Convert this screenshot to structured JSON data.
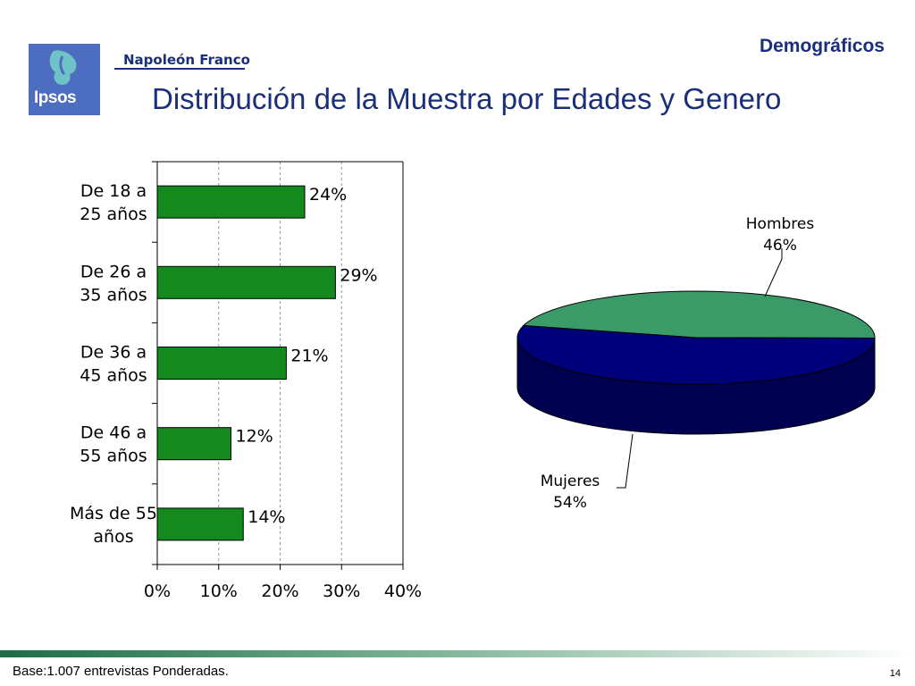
{
  "header": {
    "section": "Demográficos",
    "title": "Distribución de la Muestra por Edades y Genero",
    "brand": "Napoleón Franco",
    "logo_text": "Ipsos"
  },
  "footer": {
    "note": "Base:1.007 entrevistas Ponderadas.",
    "page_number": "14"
  },
  "colors": {
    "bar": "#148a1e",
    "title_blue": "#1a2f7a",
    "pie_men": "#3a9a68",
    "pie_women": "#00007a",
    "pie_women_side": "#000050",
    "pie_men_side": "#1e5c3c"
  },
  "chart_data": [
    {
      "type": "bar",
      "orientation": "horizontal",
      "categories": [
        "De 18 a\n25 años",
        "De 26 a\n35 años",
        "De 36 a\n45 años",
        "De 46 a\n55 años",
        "Más de 55\naños"
      ],
      "values": [
        24,
        29,
        21,
        12,
        14
      ],
      "data_labels": [
        "24%",
        "29%",
        "21%",
        "12%",
        "14%"
      ],
      "xlim": [
        0,
        40
      ],
      "x_ticks": [
        "0%",
        "10%",
        "20%",
        "30%",
        "40%"
      ],
      "grid": "vertical dashed"
    },
    {
      "type": "pie",
      "style": "3d",
      "slices": [
        {
          "label": "Hombres",
          "value": 46,
          "value_label": "46%"
        },
        {
          "label": "Mujeres",
          "value": 54,
          "value_label": "54%"
        }
      ]
    }
  ]
}
